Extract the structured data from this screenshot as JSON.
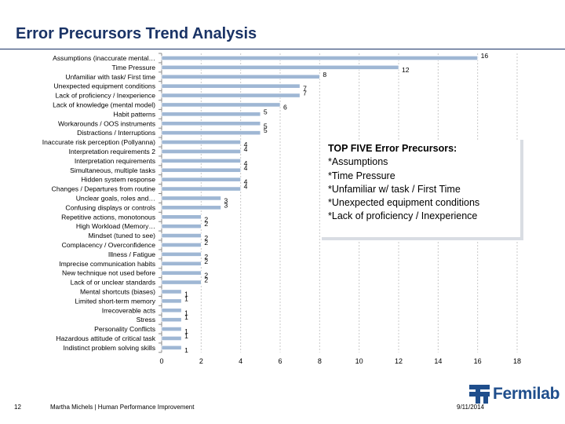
{
  "page": {
    "title": "Error Precursors Trend Analysis"
  },
  "chart_data": {
    "type": "bar",
    "orientation": "horizontal",
    "categories": [
      "Assumptions (inaccurate mental…",
      "Time Pressure",
      "Unfamiliar with task/ First time",
      "Unexpected equipment conditions",
      "Lack of proficiency / Inexperience",
      "Lack of knowledge (mental model)",
      "Habit patterns",
      "Workarounds / OOS instruments",
      "Distractions / Interruptions",
      "Inaccurate risk perception (Pollyanna)",
      "Interpretation requirements 2",
      "Interpretation requirements",
      "Simultaneous, multiple tasks",
      "Hidden system response",
      "Changes / Departures from routine",
      "Unclear goals, roles and…",
      "Confusing displays or controls",
      "Repetitive actions, monotonous",
      "High Workload (Memory…",
      "Mindset (tuned to see)",
      "Complacency / Overconfidence",
      "Illness / Fatigue",
      "Imprecise communication habits",
      "New technique not used before",
      "Lack of or unclear standards",
      "Mental shortcuts (biases)",
      "Limited short-term memory",
      "Irrecoverable acts",
      "Stress",
      "Personality Conflicts",
      "Hazardous attitude of critical task",
      "Indistinct problem solving skills"
    ],
    "values": [
      16,
      12,
      8,
      7,
      7,
      6,
      5,
      5,
      5,
      4,
      4,
      4,
      4,
      4,
      4,
      3,
      3,
      2,
      2,
      2,
      2,
      2,
      2,
      2,
      2,
      1,
      1,
      1,
      1,
      1,
      1,
      1
    ],
    "x_ticks": [
      0,
      2,
      4,
      6,
      8,
      10,
      12,
      14,
      16,
      18
    ],
    "xlim": [
      0,
      18
    ],
    "grid": true,
    "bar_color": "#9fb7d4",
    "gridline_color": "#c8c8c8"
  },
  "callout": {
    "heading": "TOP FIVE Error Precursors:",
    "items": [
      "*Assumptions",
      "*Time Pressure",
      "*Unfamiliar w/ task / First Time",
      "*Unexpected equipment conditions",
      "*Lack of proficiency / Inexperience"
    ]
  },
  "footer": {
    "slide_number": "12",
    "author": "Martha Michels | Human Performance Improvement",
    "date": "9/11/2014",
    "logo_text": "Fermilab"
  },
  "colors": {
    "title": "#1a3366",
    "logo": "#1f4e8c"
  }
}
